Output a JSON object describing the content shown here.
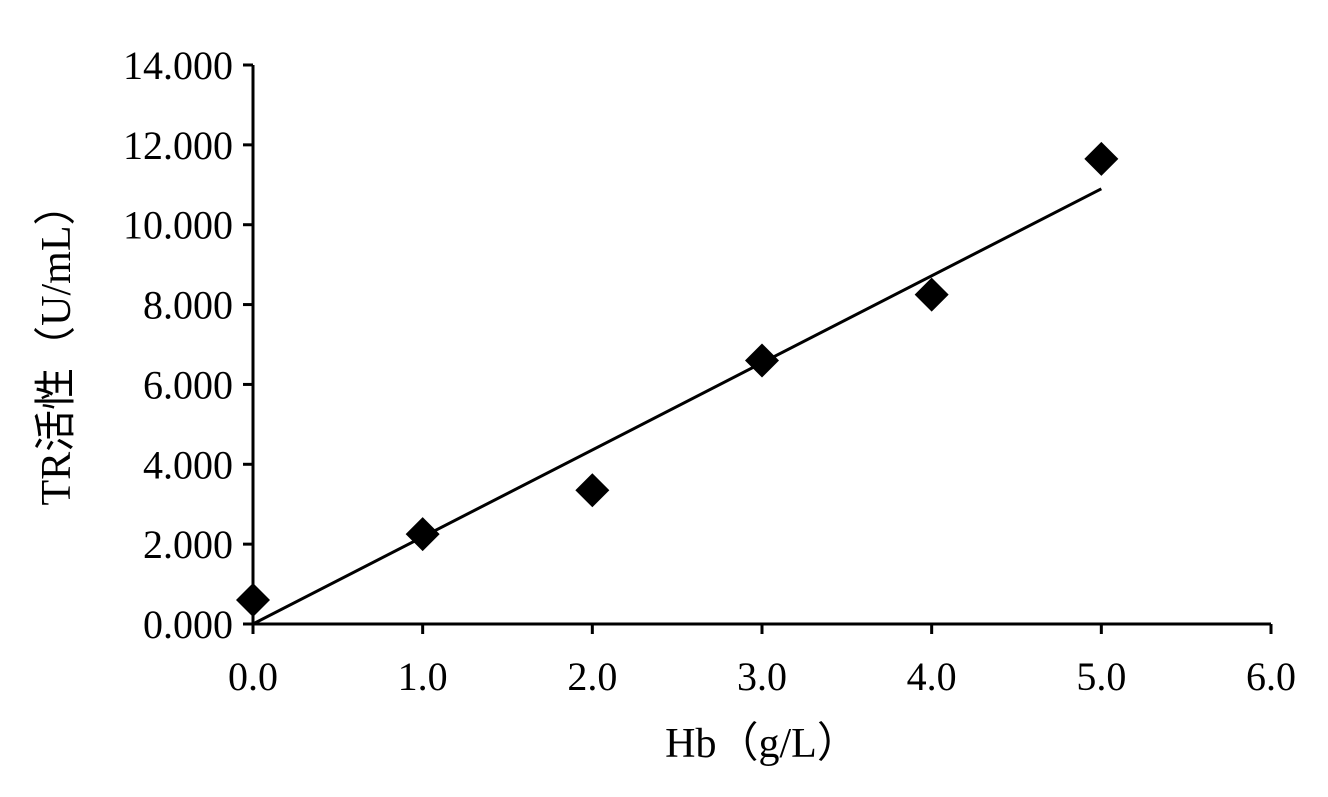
{
  "chart_data": {
    "type": "scatter",
    "xlabel": "Hb（g/L）",
    "ylabel": "TR活性（U/mL）",
    "xlim": [
      0,
      6
    ],
    "ylim": [
      0,
      14
    ],
    "x_ticks": [
      "0.0",
      "1.0",
      "2.0",
      "3.0",
      "4.0",
      "5.0",
      "6.0"
    ],
    "y_ticks": [
      "0.000",
      "2.000",
      "4.000",
      "6.000",
      "8.000",
      "10.000",
      "12.000",
      "14.000"
    ],
    "grid": false,
    "legend": "none",
    "marker": "diamond",
    "marker_color": "#000000",
    "series": [
      {
        "points": [
          {
            "x": 0.0,
            "y": 0.6
          },
          {
            "x": 1.0,
            "y": 2.25
          },
          {
            "x": 2.0,
            "y": 3.35
          },
          {
            "x": 3.0,
            "y": 6.6
          },
          {
            "x": 4.0,
            "y": 8.25
          },
          {
            "x": 5.0,
            "y": 11.65
          }
        ]
      }
    ],
    "trendline": {
      "type": "linear",
      "from": {
        "x": 0.0,
        "y": 0.0
      },
      "to": {
        "x": 5.0,
        "y": 10.9
      }
    }
  }
}
